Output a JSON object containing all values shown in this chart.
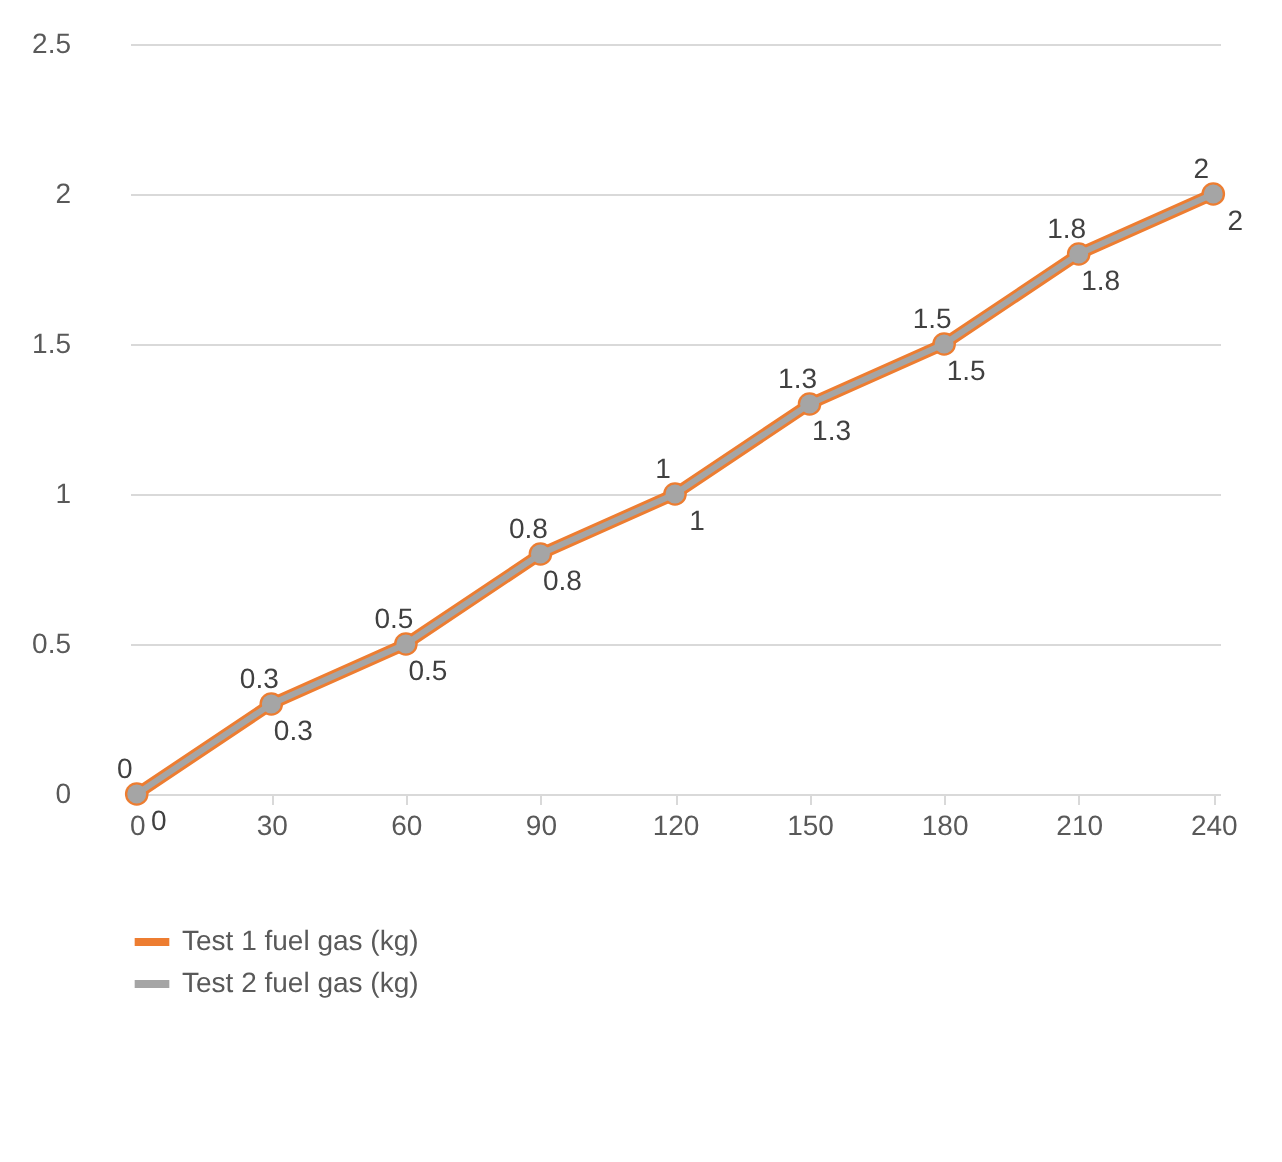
{
  "chart_data": {
    "type": "line",
    "categories": [
      "0",
      "30",
      "60",
      "90",
      "120",
      "150",
      "180",
      "210",
      "240"
    ],
    "series": [
      {
        "name": "Test 1 fuel gas (kg)",
        "color": "#ed7d31",
        "values": [
          0,
          0.3,
          0.5,
          0.8,
          1,
          1.3,
          1.5,
          1.8,
          2
        ]
      },
      {
        "name": "Test 2 fuel gas (kg)",
        "color": "#a5a5a5",
        "values": [
          0,
          0.3,
          0.5,
          0.8,
          1,
          1.3,
          1.5,
          1.8,
          2
        ]
      }
    ],
    "ylim": [
      0,
      2.5
    ],
    "yticks": [
      0,
      0.5,
      1,
      1.5,
      2,
      2.5
    ],
    "grid": "y",
    "legend": "bottom",
    "marker": "circle",
    "line_style": "solid",
    "data_labels": true
  }
}
